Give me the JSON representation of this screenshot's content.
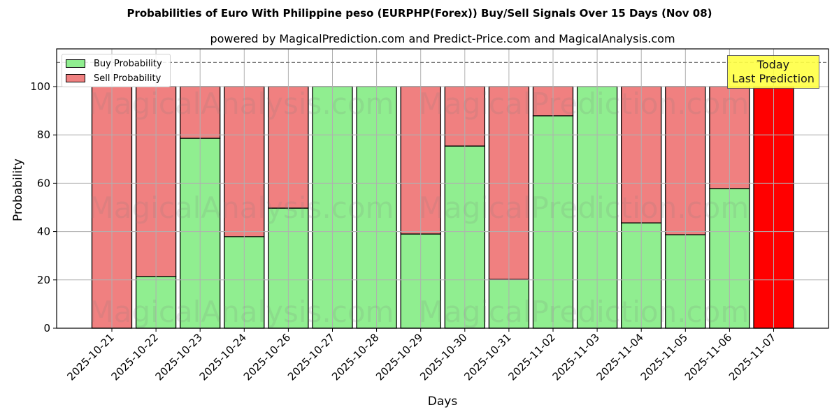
{
  "header": {
    "title": "Probabilities of Euro With Philippine peso (EURPHP(Forex)) Buy/Sell Signals Over 15 Days (Nov 08)",
    "subtitle": "powered by MagicalPrediction.com and Predict-Price.com and MagicalAnalysis.com"
  },
  "legend": {
    "buy_label": "Buy Probability",
    "sell_label": "Sell Probability"
  },
  "annotation": {
    "line1": "Today",
    "line2": "Last Prediction"
  },
  "watermarks": [
    "MagicalAnalysis.com",
    "MagicalPrediction.com"
  ],
  "colors": {
    "buy": "#90ee90",
    "sell": "#f08080",
    "today_sell": "#ff0000",
    "annotation_bg": "#ffff44",
    "grid": "#b0b0b0",
    "threshold_line": "#808080"
  },
  "chart_data": {
    "type": "bar",
    "stacked": true,
    "title": "Probabilities of Euro With Philippine peso (EURPHP(Forex)) Buy/Sell Signals Over 15 Days (Nov 08)",
    "subtitle": "powered by MagicalPrediction.com and Predict-Price.com and MagicalAnalysis.com",
    "xlabel": "Days",
    "ylabel": "Probability",
    "ylim": [
      0,
      115.6
    ],
    "yticks": [
      0,
      20,
      40,
      60,
      80,
      100
    ],
    "grid": true,
    "legend_position": "upper left",
    "threshold_line": 110,
    "categories": [
      "2025-10-21",
      "2025-10-22",
      "2025-10-23",
      "2025-10-24",
      "2025-10-26",
      "2025-10-27",
      "2025-10-28",
      "2025-10-29",
      "2025-10-30",
      "2025-10-31",
      "2025-11-02",
      "2025-11-03",
      "2025-11-04",
      "2025-11-05",
      "2025-11-06",
      "2025-11-07"
    ],
    "series": [
      {
        "name": "Buy Probability",
        "values": [
          0,
          21.4,
          78.6,
          37.9,
          49.7,
          100,
          100,
          39.0,
          75.4,
          20.2,
          87.9,
          100,
          43.6,
          38.7,
          57.8,
          0
        ]
      },
      {
        "name": "Sell Probability",
        "values": [
          100,
          78.6,
          21.4,
          62.1,
          50.3,
          0,
          0,
          61.0,
          24.6,
          79.8,
          12.1,
          0,
          56.4,
          61.3,
          42.2,
          100
        ]
      }
    ],
    "highlight": {
      "category": "2025-11-07",
      "label": "Today\nLast Prediction",
      "color": "#ff0000"
    }
  }
}
